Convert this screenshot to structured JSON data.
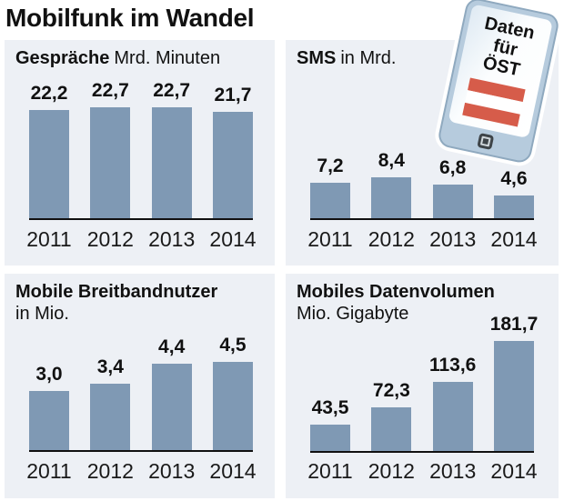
{
  "title": "Mobilfunk im Wandel",
  "phone_badge": {
    "lines": [
      "Daten",
      "für",
      "ÖST"
    ],
    "flag": "austria-flag",
    "flag_colors": {
      "red": "#d65c4a",
      "white": "#ffffff"
    }
  },
  "colors": {
    "panel_bg": "#edf0f5",
    "bar": "#7f99b4",
    "axis": "#111111",
    "text": "#111111"
  },
  "chart_data": [
    {
      "id": "gespraeche",
      "type": "bar",
      "title_bold": "Gespräche",
      "title_rest": "Mrd. Minuten",
      "categories": [
        "2011",
        "2012",
        "2013",
        "2014"
      ],
      "values": [
        22.2,
        22.7,
        22.7,
        21.7
      ],
      "value_labels": [
        "22,2",
        "22,7",
        "22,7",
        "21,7"
      ],
      "ylim": [
        0,
        22.7
      ],
      "grid": false,
      "legend": false
    },
    {
      "id": "sms",
      "type": "bar",
      "title_bold": "SMS",
      "title_rest": "in Mrd.",
      "categories": [
        "2011",
        "2012",
        "2013",
        "2014"
      ],
      "values": [
        7.2,
        8.4,
        6.8,
        4.6
      ],
      "value_labels": [
        "7,2",
        "8,4",
        "6,8",
        "4,6"
      ],
      "ylim": [
        0,
        22.7
      ],
      "grid": false,
      "legend": false
    },
    {
      "id": "breitbandnutzer",
      "type": "bar",
      "title_bold": "Mobile Breitbandnutzer",
      "title_rest": "in Mio.",
      "categories": [
        "2011",
        "2012",
        "2013",
        "2014"
      ],
      "values": [
        3.0,
        3.4,
        4.4,
        4.5
      ],
      "value_labels": [
        "3,0",
        "3,4",
        "4,4",
        "4,5"
      ],
      "ylim": [
        0,
        4.5
      ],
      "grid": false,
      "legend": false
    },
    {
      "id": "datenvolumen",
      "type": "bar",
      "title_bold": "Mobiles Datenvolumen",
      "title_rest": "Mio. Gigabyte",
      "categories": [
        "2011",
        "2012",
        "2013",
        "2014"
      ],
      "values": [
        43.5,
        72.3,
        113.6,
        181.7
      ],
      "value_labels": [
        "43,5",
        "72,3",
        "113,6",
        "181,7"
      ],
      "ylim": [
        0,
        181.7
      ],
      "grid": false,
      "legend": false
    }
  ]
}
